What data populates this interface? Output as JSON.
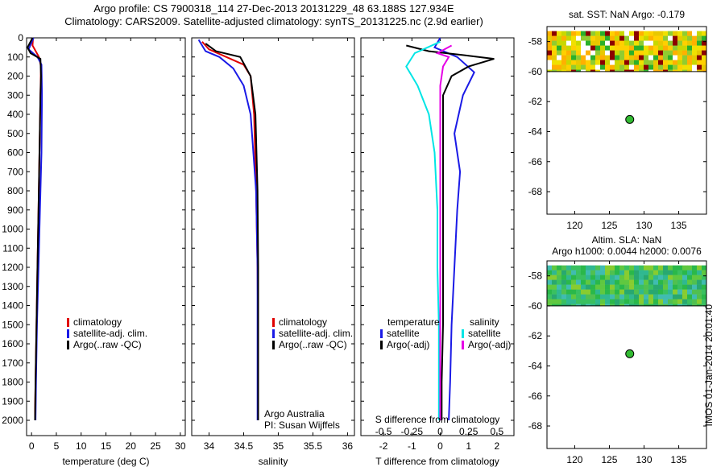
{
  "header": {
    "line1": "Argo profile: CS 7900318_114 27-Dec-2013 20131229_48 63.188S 127.934E",
    "line2": "Climatology: CARS2009. Satellite-adjusted climatology: synTS_20131225.nc (2.9d earlier)"
  },
  "side_label": "IMOS 01-Jan-2014 20:01:40",
  "colors": {
    "climatology": "#e00000",
    "satellite": "#1a1ae6",
    "argo": "#000000",
    "sat_salinity": "#00e5e5",
    "argo_salinity": "#e600e6"
  },
  "chart_data": [
    {
      "type": "line",
      "id": "temperature",
      "xlabel": "temperature (deg C)",
      "xlim": [
        -1,
        31
      ],
      "ylim": [
        2080,
        0
      ],
      "xticks": [
        0,
        5,
        10,
        15,
        20,
        25,
        30
      ],
      "yticks": [
        0,
        100,
        200,
        300,
        400,
        500,
        600,
        700,
        800,
        900,
        1000,
        1100,
        1200,
        1300,
        1400,
        1500,
        1600,
        1700,
        1800,
        1900,
        2000
      ],
      "legend": [
        "climatology",
        "satellite-adj. clim.",
        "Argo(..raw -QC)"
      ],
      "series": [
        {
          "name": "climatology",
          "color": "#e00000",
          "points": [
            [
              0.3,
              0
            ],
            [
              0.2,
              40
            ],
            [
              1.5,
              100
            ],
            [
              1.9,
              150
            ],
            [
              1.8,
              300
            ],
            [
              1.6,
              600
            ],
            [
              1.4,
              900
            ],
            [
              1.2,
              1200
            ],
            [
              1.0,
              1500
            ],
            [
              0.8,
              1800
            ],
            [
              0.7,
              1950
            ],
            [
              0.7,
              2000
            ]
          ]
        },
        {
          "name": "satellite-adj. clim.",
          "color": "#1a1ae6",
          "points": [
            [
              0.4,
              0
            ],
            [
              -0.6,
              60
            ],
            [
              1.2,
              100
            ],
            [
              2.0,
              140
            ],
            [
              2.1,
              300
            ],
            [
              2.0,
              600
            ],
            [
              1.7,
              900
            ],
            [
              1.4,
              1200
            ],
            [
              1.1,
              1500
            ],
            [
              0.9,
              1800
            ],
            [
              0.8,
              2000
            ]
          ]
        },
        {
          "name": "Argo(..raw -QC)",
          "color": "#000000",
          "points": [
            [
              0.2,
              0
            ],
            [
              -0.8,
              50
            ],
            [
              -0.2,
              80
            ],
            [
              1.8,
              110
            ],
            [
              1.9,
              200
            ],
            [
              1.8,
              300
            ],
            [
              1.6,
              600
            ],
            [
              1.4,
              900
            ],
            [
              1.2,
              1200
            ],
            [
              1.0,
              1500
            ],
            [
              0.8,
              1800
            ],
            [
              0.7,
              2000
            ]
          ]
        }
      ]
    },
    {
      "type": "line",
      "id": "salinity",
      "xlabel": "salinity",
      "xlim": [
        33.75,
        36.1
      ],
      "ylim": [
        2080,
        0
      ],
      "xticks": [
        34,
        34.5,
        35,
        35.5,
        36
      ],
      "legend": [
        "climatology",
        "satellite-adj. clim.",
        "Argo(..raw -QC)"
      ],
      "annotation": [
        "Argo Australia",
        "PI: Susan Wijffels"
      ],
      "series": [
        {
          "name": "climatology",
          "color": "#e00000",
          "points": [
            [
              33.9,
              20
            ],
            [
              34.0,
              60
            ],
            [
              34.25,
              100
            ],
            [
              34.5,
              140
            ],
            [
              34.6,
              200
            ],
            [
              34.65,
              400
            ],
            [
              34.68,
              800
            ],
            [
              34.7,
              1200
            ],
            [
              34.71,
              1600
            ],
            [
              34.71,
              2000
            ]
          ]
        },
        {
          "name": "satellite-adj. clim.",
          "color": "#1a1ae6",
          "points": [
            [
              33.85,
              10
            ],
            [
              33.95,
              70
            ],
            [
              34.15,
              100
            ],
            [
              34.35,
              160
            ],
            [
              34.5,
              250
            ],
            [
              34.6,
              400
            ],
            [
              34.68,
              800
            ],
            [
              34.7,
              1200
            ],
            [
              34.7,
              1600
            ],
            [
              34.7,
              2000
            ]
          ]
        },
        {
          "name": "Argo(..raw -QC)",
          "color": "#000000",
          "points": [
            [
              33.95,
              30
            ],
            [
              34.1,
              70
            ],
            [
              34.45,
              100
            ],
            [
              34.6,
              200
            ],
            [
              34.67,
              400
            ],
            [
              34.7,
              800
            ],
            [
              34.71,
              1200
            ],
            [
              34.71,
              1600
            ],
            [
              34.71,
              2000
            ]
          ]
        }
      ]
    },
    {
      "type": "line",
      "id": "difference",
      "xlabel": "T difference from climatology",
      "xlabel2": "S difference from climatology",
      "xlim": [
        -2.8,
        2.6
      ],
      "ylim": [
        2080,
        0
      ],
      "xticks": [
        -2,
        -1,
        0,
        1,
        2
      ],
      "xticks2": [
        -0.5,
        -0.25,
        0,
        0.25,
        0.5
      ],
      "legend_headers": [
        "temperature",
        "salinity"
      ],
      "legend": [
        "satellite",
        "Argo(-adj)",
        "satellite",
        "Argo(-adj)"
      ],
      "series": [
        {
          "name": "T satellite",
          "color": "#1a1ae6",
          "points": [
            [
              0,
              0
            ],
            [
              -0.2,
              50
            ],
            [
              0.6,
              100
            ],
            [
              1.2,
              180
            ],
            [
              0.8,
              300
            ],
            [
              0.5,
              500
            ],
            [
              0.7,
              700
            ],
            [
              0.6,
              900
            ],
            [
              0.5,
              1200
            ],
            [
              0.4,
              1500
            ],
            [
              0.35,
              1800
            ],
            [
              0.3,
              2000
            ]
          ]
        },
        {
          "name": "T Argo(-adj)",
          "color": "#000000",
          "points": [
            [
              -1.2,
              40
            ],
            [
              -0.4,
              70
            ],
            [
              0.8,
              90
            ],
            [
              1.9,
              110
            ],
            [
              1.0,
              150
            ],
            [
              0.4,
              200
            ],
            [
              0.1,
              300
            ],
            [
              0.1,
              600
            ],
            [
              0.1,
              900
            ],
            [
              0.1,
              1200
            ],
            [
              0.1,
              1500
            ],
            [
              0.05,
              1800
            ],
            [
              0.05,
              2000
            ]
          ]
        },
        {
          "name": "S satellite",
          "color": "#00e5e5",
          "points": [
            [
              0,
              20
            ],
            [
              -0.9,
              80
            ],
            [
              -1.2,
              150
            ],
            [
              -0.8,
              250
            ],
            [
              -0.4,
              400
            ],
            [
              -0.2,
              600
            ],
            [
              -0.1,
              900
            ],
            [
              -0.1,
              1200
            ],
            [
              -0.05,
              1500
            ],
            [
              -0.05,
              1800
            ],
            [
              -0.05,
              2000
            ]
          ]
        },
        {
          "name": "S Argo(-adj)",
          "color": "#e600e6",
          "points": [
            [
              0.4,
              40
            ],
            [
              -0.1,
              80
            ],
            [
              0.3,
              100
            ],
            [
              0.1,
              150
            ],
            [
              0,
              250
            ],
            [
              0,
              600
            ],
            [
              0,
              1000
            ],
            [
              0,
              1500
            ],
            [
              0,
              2000
            ]
          ]
        }
      ]
    },
    {
      "type": "heatmap",
      "id": "sst_map",
      "title": "sat. SST: NaN Argo: -0.179",
      "xlim": [
        116,
        139
      ],
      "ylim": [
        -69.5,
        -57
      ],
      "xticks": [
        120,
        125,
        130,
        135
      ],
      "yticks": [
        -58,
        -60,
        -62,
        -64,
        -66,
        -68
      ],
      "marker": [
        127.934,
        -63.188
      ]
    },
    {
      "type": "heatmap",
      "id": "sla_map",
      "title": "Altim. SLA: NaN",
      "subtitle": "Argo h1000: 0.0044 h2000: 0.0076",
      "xlim": [
        116,
        139
      ],
      "ylim": [
        -69.5,
        -57
      ],
      "xticks": [
        120,
        125,
        130,
        135
      ],
      "yticks": [
        -58,
        -60,
        -62,
        -64,
        -66,
        -68
      ],
      "marker": [
        127.934,
        -63.188
      ]
    }
  ]
}
